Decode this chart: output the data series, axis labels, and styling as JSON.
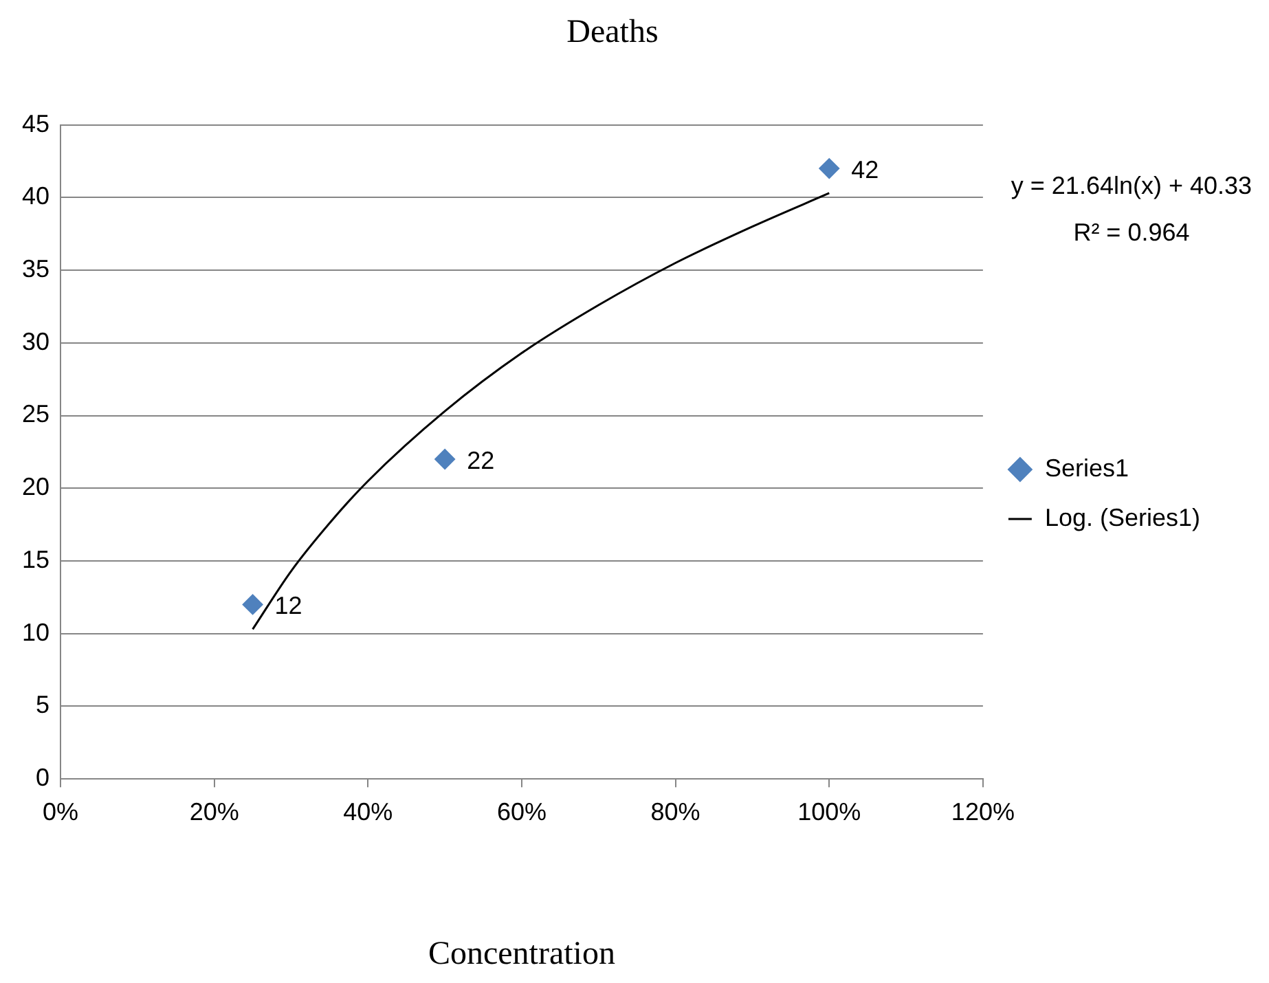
{
  "chart_data": {
    "type": "scatter",
    "title": "Deaths",
    "xlabel": "Concentration",
    "xlim": [
      0,
      1.2
    ],
    "xticks": [
      {
        "value": 0,
        "label": "0%"
      },
      {
        "value": 0.2,
        "label": "20%"
      },
      {
        "value": 0.4,
        "label": "40%"
      },
      {
        "value": 0.6,
        "label": "60%"
      },
      {
        "value": 0.8,
        "label": "80%"
      },
      {
        "value": 1,
        "label": "100%"
      },
      {
        "value": 1.2,
        "label": "120%"
      }
    ],
    "ylim": [
      0,
      45
    ],
    "yticks": [
      0,
      5,
      10,
      15,
      20,
      25,
      30,
      35,
      40,
      45
    ],
    "grid": "y",
    "legend": "right",
    "annotations": [
      "y = 21.64ln(x) + 40.33",
      "R² = 0.964"
    ],
    "series": [
      {
        "name": "Series1",
        "marker": "diamond",
        "color": "#4f81bd",
        "x": [
          0.25,
          0.5,
          1
        ],
        "values": [
          12,
          22,
          42
        ],
        "value_labels": [
          "12",
          "22",
          "42"
        ]
      },
      {
        "name": "Log. (Series1)",
        "type": "line",
        "marker": "none",
        "color": "#000000",
        "x": [
          0.25,
          0.3,
          0.35,
          0.4,
          0.5,
          0.6,
          0.7,
          0.8,
          0.9,
          1
        ],
        "values": [
          10.3,
          14.3,
          17.6,
          20.5,
          25.3,
          29.3,
          32.6,
          35.5,
          38,
          40.3
        ]
      }
    ]
  }
}
